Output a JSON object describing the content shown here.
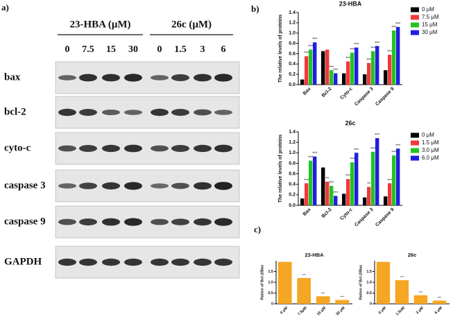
{
  "figure": {
    "labels": [
      "a)",
      "b)",
      "c)"
    ]
  },
  "blot": {
    "groups": [
      {
        "label": "23-HBA (μM)",
        "concentrations": [
          "0",
          "7.5",
          "15",
          "30"
        ]
      },
      {
        "label": "26c (μM)",
        "concentrations": [
          "0",
          "1.5",
          "3",
          "6"
        ]
      }
    ],
    "rows": [
      "bax",
      "bcl-2",
      "cyto-c",
      "caspase 3",
      "caspase 9",
      "GAPDH"
    ]
  },
  "chart_data": [
    {
      "type": "bar",
      "title": "23-HBA",
      "y_label": "The relative levels of proteins",
      "categories": [
        "Bax",
        "Bcl-2",
        "Cyto-c",
        "Caspase 3",
        "Caspase 9"
      ],
      "series": [
        {
          "name": "0 μM",
          "color": "#000000",
          "values": [
            0.1,
            0.65,
            0.22,
            0.2,
            0.28
          ],
          "annotations": [
            null,
            null,
            null,
            null,
            null
          ]
        },
        {
          "name": "7.5 μM",
          "color": "#f0383a",
          "values": [
            0.55,
            0.68,
            0.45,
            0.42,
            0.58
          ],
          "annotations": [
            "***",
            null,
            "***",
            "***",
            "***"
          ]
        },
        {
          "name": "15 μM",
          "color": "#22c422",
          "values": [
            0.68,
            0.28,
            0.62,
            0.65,
            1.05
          ],
          "annotations": [
            "***",
            "***",
            "***",
            "***",
            "***"
          ]
        },
        {
          "name": "30 μM",
          "color": "#1f1fe0",
          "values": [
            0.82,
            0.22,
            0.72,
            0.75,
            1.12
          ],
          "annotations": [
            "***",
            "***",
            "***",
            "***",
            "***"
          ]
        }
      ],
      "ylim": [
        0,
        1.4
      ],
      "yticks": [
        {
          "value": 0,
          "label": "0.0"
        },
        {
          "value": 0.2,
          "label": "0.2"
        },
        {
          "value": 0.4,
          "label": "0.4"
        },
        {
          "value": 0.6,
          "label": "0.6"
        },
        {
          "value": 0.8,
          "label": "0.8"
        },
        {
          "value": 1.0,
          "label": "1.0"
        },
        {
          "value": 1.2,
          "label": "1.2"
        },
        {
          "value": 1.4,
          "label": "1.4"
        }
      ],
      "legend": "upper right"
    },
    {
      "type": "bar",
      "title": "26c",
      "y_label": "The relative levels of proteins",
      "categories": [
        "Bax",
        "Bcl-2",
        "Cyto-c",
        "Caspase 3",
        "Caspase 9"
      ],
      "series": [
        {
          "name": "0 μM",
          "color": "#000000",
          "values": [
            0.13,
            0.72,
            0.22,
            0.15,
            0.17
          ],
          "annotations": [
            null,
            null,
            null,
            null,
            null
          ]
        },
        {
          "name": "1.5 μM",
          "color": "#f0383a",
          "values": [
            0.42,
            0.45,
            0.5,
            0.35,
            0.42
          ],
          "annotations": [
            "***",
            "**",
            "***",
            "**",
            "***"
          ]
        },
        {
          "name": "3.0 μM",
          "color": "#22c422",
          "values": [
            0.85,
            0.37,
            0.82,
            1.02,
            0.95
          ],
          "annotations": [
            "***",
            "***",
            "***",
            "***",
            "***"
          ]
        },
        {
          "name": "6.0 μM",
          "color": "#1f1fe0",
          "values": [
            0.93,
            0.18,
            1.0,
            1.28,
            1.08
          ],
          "annotations": [
            "***",
            "***",
            "***",
            "***",
            "***"
          ]
        }
      ],
      "ylim": [
        0,
        1.4
      ],
      "yticks": [
        {
          "value": 0,
          "label": "0.0"
        },
        {
          "value": 0.2,
          "label": "0.2"
        },
        {
          "value": 0.4,
          "label": "0.4"
        },
        {
          "value": 0.6,
          "label": "0.6"
        },
        {
          "value": 0.8,
          "label": "0.8"
        },
        {
          "value": 1.0,
          "label": "1.0"
        },
        {
          "value": 1.2,
          "label": "1.2"
        },
        {
          "value": 1.4,
          "label": "1.4"
        }
      ],
      "legend": "upper right"
    },
    {
      "type": "bar",
      "title": "23-HBA",
      "y_label": "Ration of Bcl-2/Bax",
      "categories": [
        "0 μM",
        "7.5μM",
        "15 μM",
        "30 μM"
      ],
      "values": [
        1.95,
        1.2,
        0.35,
        0.18
      ],
      "color": "#f5a623",
      "annotations": [
        null,
        "***",
        "***",
        "***"
      ],
      "ylim": [
        0,
        2.0
      ],
      "yticks": [
        0,
        0.5,
        {
          "value": 1.0,
          "label": "1.0"
        },
        1.5
      ]
    },
    {
      "type": "bar",
      "title": "26c",
      "y_label": "Ration of Bcl-2/Bax",
      "categories": [
        "0 μM",
        "1.5uM",
        "3 μM",
        "6 μM"
      ],
      "values": [
        1.95,
        1.1,
        0.4,
        0.15
      ],
      "color": "#f5a623",
      "annotations": [
        null,
        "***",
        "***",
        "***"
      ],
      "ylim": [
        0,
        2.0
      ],
      "yticks": [
        0,
        0.5,
        {
          "value": 1.0,
          "label": "1.0"
        },
        1.5
      ]
    }
  ]
}
